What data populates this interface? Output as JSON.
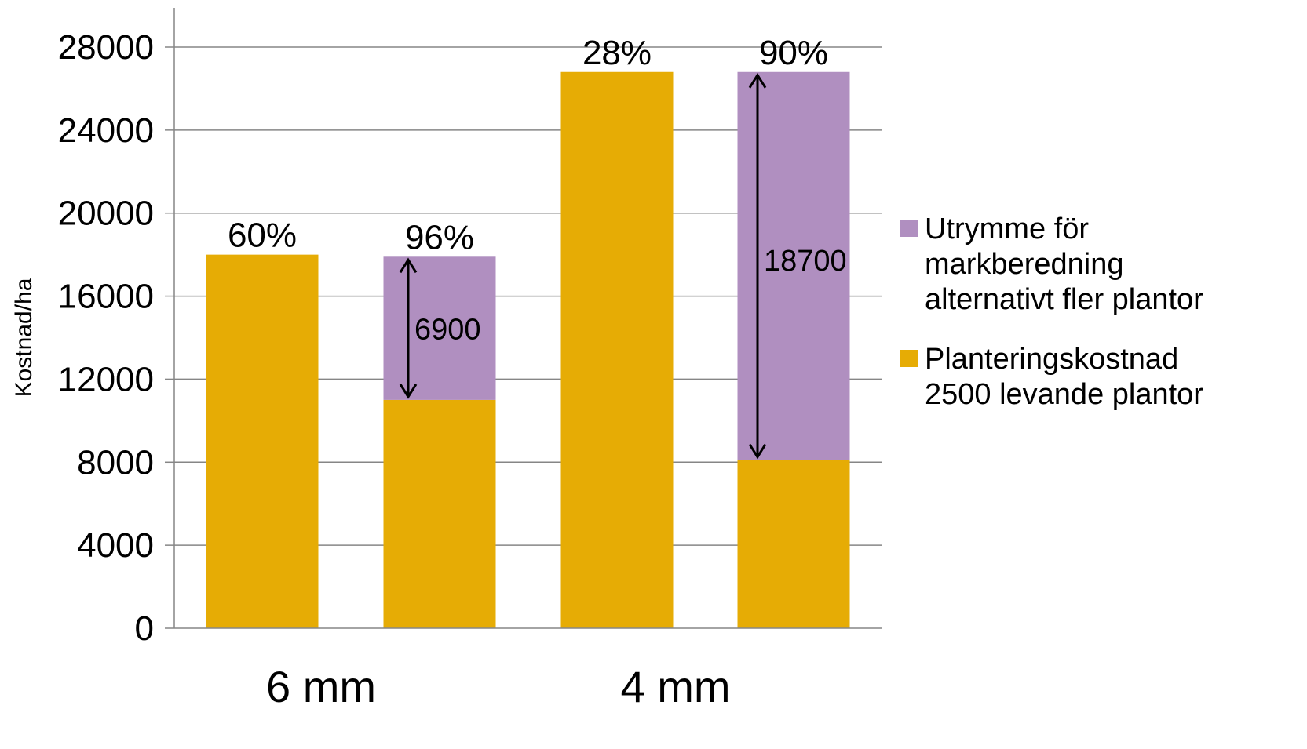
{
  "chart_data": {
    "type": "bar",
    "stacked": true,
    "ylabel": "Kostnad/ha",
    "xlabel": "",
    "ylim": [
      0,
      30000
    ],
    "yticks": [
      0,
      4000,
      8000,
      12000,
      16000,
      20000,
      24000,
      28000
    ],
    "ytick_labels": [
      "0",
      "4000",
      "8000",
      "12000",
      "16000",
      "20000",
      "24000",
      "28000"
    ],
    "grid": true,
    "legend_position": "right",
    "groups": [
      "6 mm",
      "4 mm"
    ],
    "series": [
      {
        "name": "Planteringskostnad 2500 levande plantor",
        "legend_lines": [
          "Planteringskostnad",
          "2500 levande plantor"
        ],
        "color": "#E6AC05",
        "values": [
          18000,
          11000,
          26800,
          8100
        ]
      },
      {
        "name": "Utrymme för markberedning alternativt fler plantor",
        "legend_lines": [
          "Utrymme för",
          "markberedning",
          "alternativt fler plantor"
        ],
        "color": "#B08FC0",
        "values": [
          0,
          6900,
          0,
          18700
        ]
      }
    ],
    "bar_group_index": [
      0,
      0,
      1,
      1
    ],
    "bar_top_labels": [
      "60%",
      "96%",
      "28%",
      "90%"
    ],
    "segment_annotations": [
      {
        "bar": 1,
        "from": 11000,
        "to": 17900,
        "label": "6900"
      },
      {
        "bar": 3,
        "from": 8100,
        "to": 26800,
        "label": "18700"
      }
    ]
  }
}
